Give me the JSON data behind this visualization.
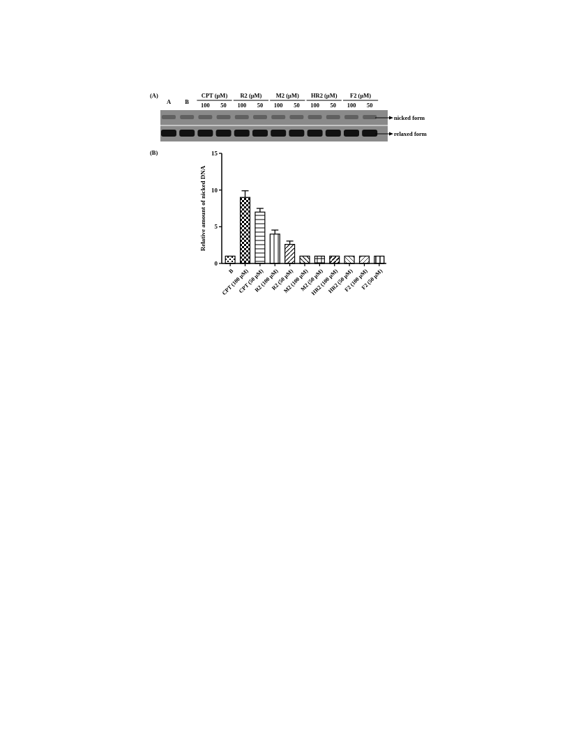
{
  "chart_data": {
    "type": "bar",
    "ylabel": "Relative amount of nicked DNA",
    "categories": [
      "B",
      "CPT (100 μM)",
      "CPT (50 μM)",
      "R2 (100 μM)",
      "R2 (50 μM)",
      "M2 (100 μM)",
      "M2 (50 μM)",
      "HR2 (100 μM)",
      "HR2 (50 μM)",
      "F2 (100 μM)",
      "F2 (50 μM)"
    ],
    "values": [
      1,
      9,
      7,
      4,
      2.6,
      1,
      1,
      1,
      1,
      1,
      1
    ],
    "errors": [
      null,
      0.9,
      0.5,
      0.55,
      0.45,
      null,
      null,
      null,
      null,
      null,
      null
    ],
    "color": "#000000",
    "ylim": [
      0,
      15
    ],
    "yticks": [
      0,
      5,
      10,
      15
    ],
    "grid": false,
    "annotations": [
      "(A)",
      "A",
      "B",
      "CPT (μM)",
      "100",
      "50",
      "R2 (μM)",
      "100",
      "50",
      "M2 (μM)",
      "100",
      "50",
      "HR2 (μM)",
      "100",
      "50",
      "F2 (μM)",
      "100",
      "50",
      "nicked form",
      "relaxed form",
      "(B)"
    ]
  }
}
